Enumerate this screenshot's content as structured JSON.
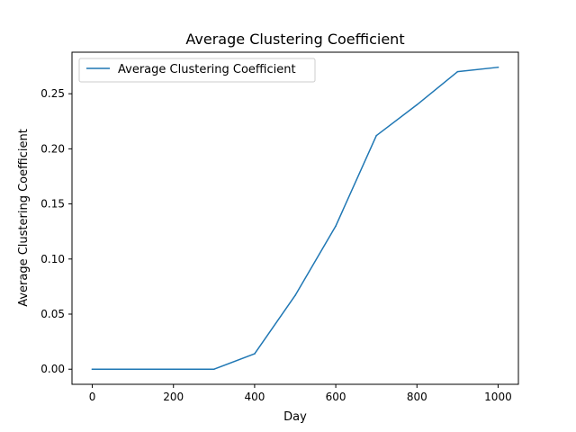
{
  "chart_data": {
    "type": "line",
    "title": "Average Clustering Coefficient",
    "xlabel": "Day",
    "ylabel": "Average Clustering Coefficient",
    "xlim": [
      -50,
      1050
    ],
    "ylim": [
      -0.0137,
      0.2877
    ],
    "xticks": [
      0,
      200,
      400,
      600,
      800,
      1000
    ],
    "xtick_labels": [
      "0",
      "200",
      "400",
      "600",
      "800",
      "1000"
    ],
    "yticks": [
      0.0,
      0.05,
      0.1,
      0.15,
      0.2,
      0.25
    ],
    "ytick_labels": [
      "0.00",
      "0.05",
      "0.10",
      "0.15",
      "0.20",
      "0.25"
    ],
    "grid": false,
    "legend_position": "upper-left",
    "series": [
      {
        "name": "Average Clustering Coefficient",
        "color": "#1f77b4",
        "x": [
          0,
          100,
          200,
          300,
          400,
          500,
          600,
          700,
          800,
          900,
          1000
        ],
        "y": [
          0.0,
          0.0,
          0.0,
          0.0,
          0.014,
          0.067,
          0.13,
          0.212,
          0.24,
          0.27,
          0.274
        ]
      }
    ]
  }
}
